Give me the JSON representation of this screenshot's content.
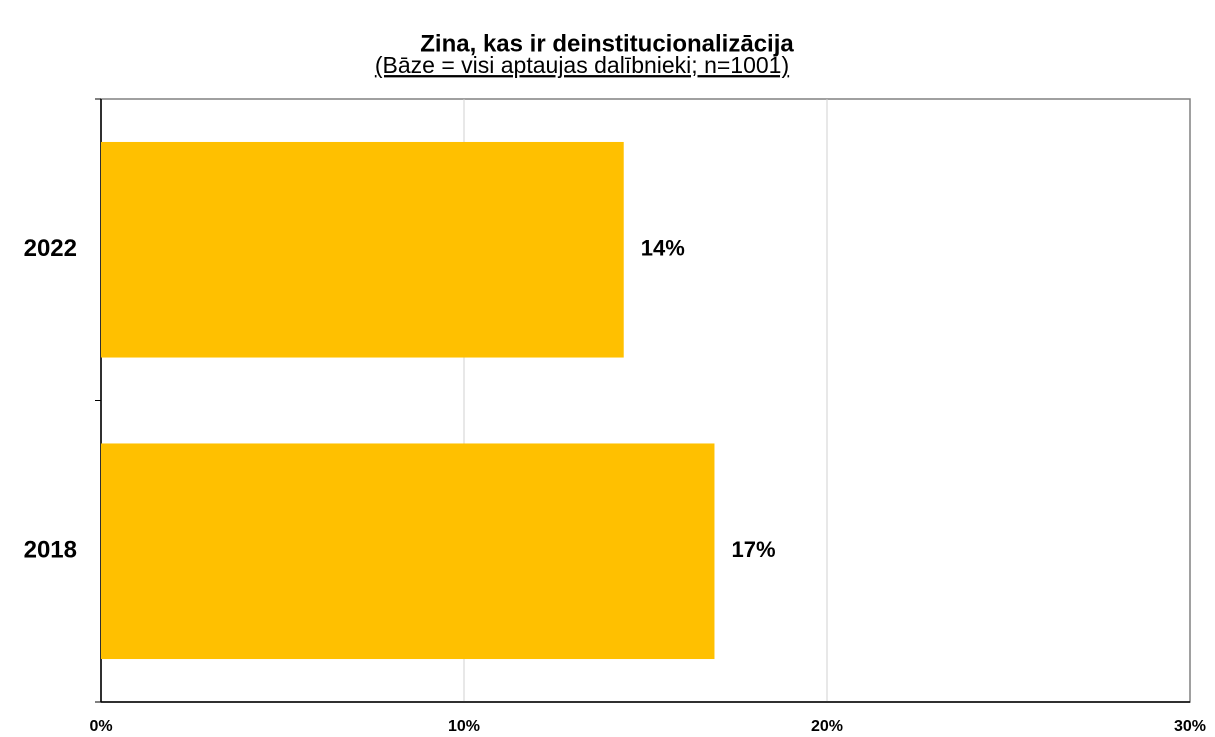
{
  "chart_data": {
    "type": "bar",
    "orientation": "horizontal",
    "title": "Zina, kas ir deinstitucionalizācija",
    "subtitle": "(Bāze = visi aptaujas dalībnieki; n=1001)",
    "categories": [
      "2022",
      "2018"
    ],
    "values": [
      14.4,
      16.9
    ],
    "value_labels": [
      "14%",
      "17%"
    ],
    "color": "#ffc000",
    "xlim": [
      0,
      30
    ],
    "xticks": [
      {
        "value": 0,
        "label": "0%"
      },
      {
        "value": 10,
        "label": "10%"
      },
      {
        "value": 20,
        "label": "20%"
      },
      {
        "value": 30,
        "label": "30%"
      }
    ],
    "grid": true
  }
}
